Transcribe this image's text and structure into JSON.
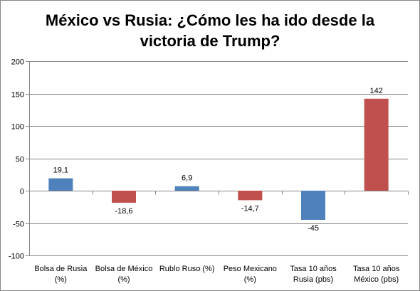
{
  "chart_data": {
    "type": "bar",
    "title_lines": [
      "México vs Rusia: ¿Cómo les ha ido desde la",
      "victoria de Trump?"
    ],
    "categories": [
      [
        "Bolsa de Rusia",
        "(%)"
      ],
      [
        "Bolsa de México",
        "(%)"
      ],
      [
        "Rublo Ruso (%)"
      ],
      [
        "Peso Mexicano",
        "(%)"
      ],
      [
        "Tasa 10 años",
        "Rusia (pbs)"
      ],
      [
        "Tasa 10 años",
        "México (pbs)"
      ]
    ],
    "values": [
      19.1,
      -18.6,
      6.9,
      -14.7,
      -45,
      142
    ],
    "value_labels": [
      "19,1",
      "-18,6",
      "6,9",
      "-14,7",
      "-45",
      "142"
    ],
    "bar_colors": [
      "#4f81bd",
      "#c0504d",
      "#4f81bd",
      "#c0504d",
      "#4f81bd",
      "#c0504d"
    ],
    "ylim": [
      -100,
      200
    ],
    "yticks": [
      -100,
      -50,
      0,
      50,
      100,
      150,
      200
    ],
    "grid": true,
    "legend": "none",
    "colors": {
      "grid": "#868686",
      "axis": "#868686"
    }
  }
}
